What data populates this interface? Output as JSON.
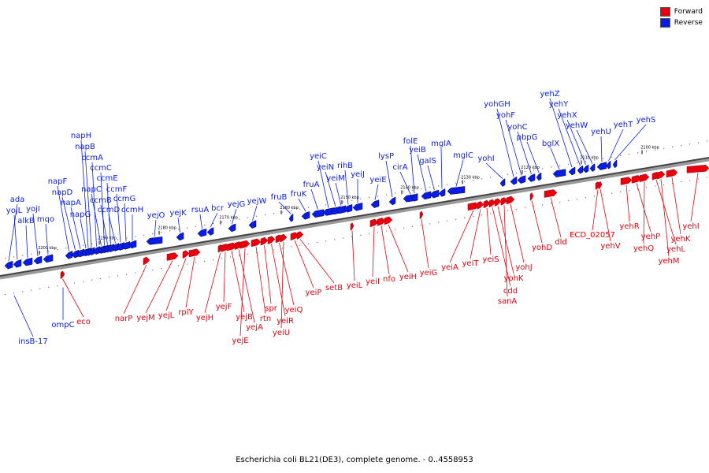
{
  "legend": {
    "forward_label": "Forward",
    "reverse_label": "Reverse",
    "forward_color": "#e8000e",
    "reverse_color": "#0a1de6"
  },
  "caption": "Escherichia coli BL21(DE3), complete genome. - 0..4558953",
  "ticks": [
    "2200 kbp",
    "2190 kbp",
    "2180 kbp",
    "2170 kbp",
    "2160 kbp",
    "2150 kbp",
    "2140 kbp",
    "2130 kbp",
    "2120 kbp",
    "2110 kbp",
    "2100 kbp"
  ],
  "reverse_genes": [
    "ada",
    "yojL",
    "alkB",
    "yojI",
    "mqo",
    "napF",
    "napD",
    "napA",
    "napG",
    "napH",
    "napB",
    "ccmA",
    "napC",
    "ccmC",
    "ccmB",
    "ccmE",
    "ccmD",
    "ccmF",
    "ccmG",
    "ccmH",
    "yejO",
    "yejK",
    "rsuA",
    "bcr",
    "yejG",
    "yejW",
    "fruB",
    "fruK",
    "fruA",
    "yeiC",
    "yeiN",
    "yeiM",
    "rihB",
    "yeiJ",
    "yeiE",
    "lysP",
    "cirA",
    "folE",
    "yeiB",
    "galS",
    "mglA",
    "mglC",
    "yohI",
    "yohGH",
    "yohF",
    "yohC",
    "pbpG",
    "bglX",
    "yehZ",
    "yehY",
    "yehX",
    "yehW",
    "yehU",
    "yehT",
    "yehS",
    "insB-17",
    "ompC"
  ],
  "forward_genes": [
    "eco",
    "narP",
    "yejM",
    "yejL",
    "rplY",
    "yejH",
    "yejF",
    "yejB",
    "yejA",
    "yejE",
    "rtn",
    "spr",
    "yeiR",
    "yeiQ",
    "yeiU",
    "yeiP",
    "setB",
    "yeiL",
    "yeiI",
    "nfo",
    "yeiH",
    "yeiG",
    "yeiA",
    "yeiT",
    "yeiS",
    "cdd",
    "yohK",
    "sanA",
    "yohJ",
    "yohD",
    "dld",
    "ECD_02057",
    "yehV",
    "yehR",
    "yehP",
    "yehQ",
    "yehL",
    "yehM",
    "yehK",
    "yehI"
  ]
}
